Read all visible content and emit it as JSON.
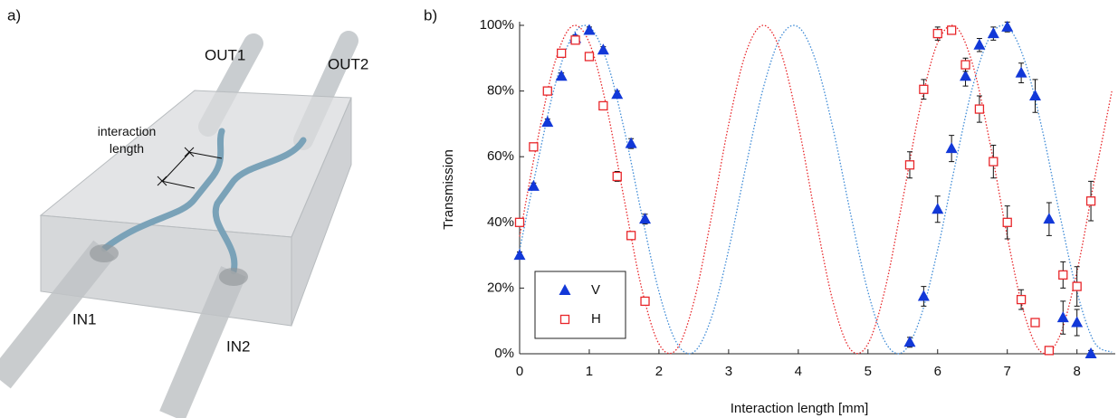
{
  "panel_labels": [
    "a)",
    "b)"
  ],
  "diagram": {
    "labels": [
      "OUT1",
      "OUT2",
      "interaction length",
      "IN1",
      "IN2"
    ]
  },
  "chart_data": {
    "type": "scatter",
    "xlabel": "Interaction length [mm]",
    "ylabel": "Transmission",
    "xlim": [
      0,
      8.55
    ],
    "xticks": [
      0,
      1,
      2,
      3,
      4,
      5,
      6,
      7,
      8
    ],
    "ylim": [
      0,
      100
    ],
    "yticks": [
      {
        "value": 0,
        "label": "0%"
      },
      {
        "value": 20,
        "label": "20%"
      },
      {
        "value": 40,
        "label": "40%"
      },
      {
        "value": 60,
        "label": "60%"
      },
      {
        "value": 80,
        "label": "80%"
      },
      {
        "value": 100,
        "label": "100%"
      }
    ],
    "grid": false,
    "legend": "lower left",
    "series": [
      {
        "name": "V",
        "color": "#1238d8",
        "marker": "triangle",
        "x": [
          0,
          0.2,
          0.4,
          0.6,
          0.8,
          1.0,
          1.2,
          1.4,
          1.6,
          1.8,
          5.6,
          5.8,
          6.0,
          6.2,
          6.4,
          6.6,
          6.8,
          7.0,
          7.2,
          7.4,
          7.6,
          7.8,
          8.0,
          8.2
        ],
        "values": [
          30,
          51,
          70.5,
          84.5,
          96,
          98.5,
          92.5,
          79,
          64,
          41,
          3.5,
          17.5,
          44,
          62.5,
          84.5,
          94,
          97.5,
          99.5,
          85.5,
          78.5,
          41,
          11,
          9.5,
          0
        ],
        "errors": [
          1,
          1,
          1,
          1,
          1,
          1,
          1,
          1,
          1.5,
          1.5,
          1.5,
          3,
          4,
          4,
          3,
          2,
          2,
          1.5,
          3,
          5,
          5,
          5,
          4,
          1
        ]
      },
      {
        "name": "H",
        "color": "#e8262a",
        "marker": "square",
        "x": [
          0,
          0.2,
          0.4,
          0.6,
          0.8,
          1.0,
          1.2,
          1.4,
          1.6,
          1.8,
          5.6,
          5.8,
          6.0,
          6.2,
          6.4,
          6.6,
          6.8,
          7.0,
          7.2,
          7.4,
          7.6,
          7.8,
          8.0,
          8.2
        ],
        "values": [
          40,
          63,
          80,
          91.5,
          95.5,
          90.5,
          75.5,
          54,
          36,
          16,
          57.5,
          80.5,
          97.5,
          98.5,
          88,
          74.5,
          58.5,
          40,
          16.5,
          9.5,
          1,
          24,
          20.5,
          46.5
        ],
        "errors": [
          1,
          1,
          1,
          1,
          1,
          1,
          1,
          1.5,
          1,
          1,
          4,
          3,
          2,
          1,
          2,
          4,
          5,
          5,
          3,
          1,
          1,
          4,
          6,
          6
        ]
      }
    ],
    "fits": [
      {
        "color": "#3d8ad6",
        "x": [
          0,
          0.25,
          0.5,
          0.75,
          1,
          1.25,
          1.5,
          1.75,
          2,
          2.25,
          2.5,
          2.75,
          3,
          3.25,
          3.5,
          3.75,
          4,
          4.25,
          4.5,
          4.75,
          5,
          5.25,
          5.5,
          5.75,
          6,
          6.25,
          6.5,
          6.75,
          7,
          7.25,
          7.5,
          7.75,
          8,
          8.25,
          8.5
        ],
        "values": [
          31.6,
          57.3,
          81.1,
          96.5,
          99.5,
          89.2,
          68.4,
          42.7,
          18.9,
          3.5,
          0.5,
          10.8,
          31.6,
          57.3,
          81.1,
          96.5,
          99.5,
          89.2,
          68.4,
          42.7,
          18.9,
          3.5,
          0.5,
          10.8,
          31.6,
          57.3,
          81.1,
          96.5,
          99.5,
          89.2,
          68.4,
          42.7,
          18.9,
          3.5,
          0.5
        ]
      },
      {
        "color": "#e8262a",
        "x": [
          0,
          0.25,
          0.5,
          0.75,
          1,
          1.25,
          1.5,
          1.75,
          2,
          2.25,
          2.5,
          2.75,
          3,
          3.25,
          3.5,
          3.75,
          4,
          4.25,
          4.5,
          4.75,
          5,
          5.25,
          5.5,
          5.75,
          6,
          6.25,
          6.5,
          6.75,
          7,
          7.25,
          7.5,
          7.75,
          8,
          8.25,
          8.5
        ],
        "values": [
          35.7,
          64.3,
          88.3,
          99.7,
          94.7,
          75,
          47.1,
          20.1,
          3.0,
          1.3,
          15.7,
          41.3,
          69.8,
          91.8,
          100,
          91.8,
          69.8,
          41.3,
          15.7,
          1.3,
          3.0,
          20.1,
          47.1,
          75,
          94.7,
          99.7,
          88.3,
          64.3,
          35.7,
          11.7,
          0.3,
          5.3,
          25,
          52.9,
          79.9
        ]
      }
    ]
  }
}
